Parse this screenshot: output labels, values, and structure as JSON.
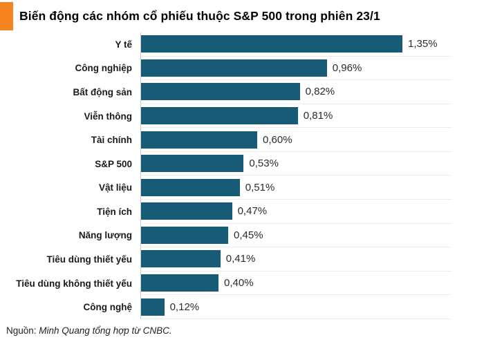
{
  "header": {
    "title": "Biến động các nhóm cổ phiếu thuộc S&P 500 trong phiên 23/1",
    "accent_color": "#f5831f"
  },
  "chart_data": {
    "type": "bar",
    "orientation": "horizontal",
    "title": "Biến động các nhóm cổ phiếu thuộc S&P 500 trong phiên 23/1",
    "categories": [
      "Y tế",
      "Công nghiệp",
      "Bất động sản",
      "Viễn thông",
      "Tài chính",
      "S&P 500",
      "Vật liệu",
      "Tiện ích",
      "Năng lượng",
      "Tiêu dùng thiết yếu",
      "Tiêu dùng không thiết yếu",
      "Công nghệ"
    ],
    "values": [
      1.35,
      0.96,
      0.82,
      0.81,
      0.6,
      0.53,
      0.51,
      0.47,
      0.45,
      0.41,
      0.4,
      0.12
    ],
    "value_labels": [
      "1,35%",
      "0,96%",
      "0,82%",
      "0,81%",
      "0,60%",
      "0,53%",
      "0,51%",
      "0,47%",
      "0,45%",
      "0,41%",
      "0,40%",
      "0,12%"
    ],
    "xlabel": "",
    "ylabel": "",
    "xlim": [
      0,
      1.6
    ],
    "bar_color": "#175b76",
    "grid": true,
    "gridline_color": "#ececec",
    "axis_line_color": "#c9c9c9",
    "legend": false,
    "value_label_position": "end-of-bar"
  },
  "footer": {
    "source_prefix": "Nguồn: ",
    "source_text": "Minh Quang tổng hợp từ CNBC."
  }
}
